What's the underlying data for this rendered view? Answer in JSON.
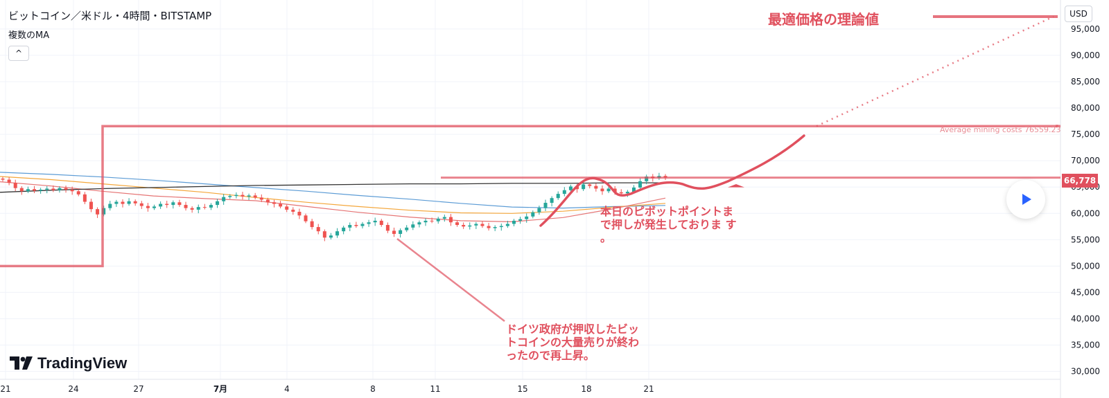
{
  "header": {
    "symbol_line": "ビットコイン／米ドル・4時間・BITSTAMP",
    "indicator": "複数のMA",
    "collapse_glyph": "^",
    "currency": "USD"
  },
  "branding": {
    "logo_text": "TradingView"
  },
  "annotations": {
    "title": "最適価格の理論値",
    "pivot_note": [
      "本日のピボットポイントま",
      "で押しが発生しておりま す",
      "。"
    ],
    "germany_note": [
      "ドイツ政府が押収したビッ",
      "トコインの大量売りが終わ",
      "ったので再上昇。"
    ],
    "mining_label": "Average mining costs 76559.23"
  },
  "colors": {
    "annotation": "#e0505e",
    "up_candle": "#26a69a",
    "down_candle": "#ef5350",
    "ma_blue": "#5b9bd5",
    "ma_orange": "#f4a63a",
    "ma_red": "#e57373",
    "ma_black": "#333333",
    "grid": "#f0f3fa"
  },
  "chart_data": {
    "type": "candlestick",
    "x_ticks": [
      "21",
      "24",
      "27",
      "7月",
      "4",
      "8",
      "11",
      "15",
      "18",
      "21"
    ],
    "y_ticks": [
      30000,
      35000,
      40000,
      45000,
      50000,
      55000,
      60000,
      65000,
      70000,
      75000,
      80000,
      85000,
      90000,
      95000
    ],
    "ylim": [
      28500,
      100500
    ],
    "current_price": "66,778",
    "mining_cost_level": 76559.23,
    "candle_closes": [
      66400,
      65800,
      64800,
      64200,
      64600,
      64300,
      64500,
      64700,
      64400,
      64800,
      64500,
      64200,
      63600,
      62200,
      60800,
      59800,
      61000,
      61800,
      62200,
      61800,
      62300,
      61900,
      61400,
      61000,
      61300,
      61800,
      61600,
      62100,
      61600,
      61000,
      60700,
      61200,
      61100,
      61600,
      62300,
      63100,
      63300,
      63500,
      63200,
      63400,
      63000,
      62600,
      62100,
      61800,
      61300,
      60700,
      60300,
      59600,
      58500,
      57400,
      56600,
      55400,
      55800,
      56600,
      57300,
      57800,
      57600,
      58000,
      58300,
      58600,
      57800,
      56700,
      56100,
      56800,
      57300,
      57900,
      58300,
      58600,
      58500,
      59000,
      59300,
      58300,
      57800,
      57500,
      57700,
      58000,
      57600,
      57200,
      57400,
      57600,
      58000,
      58600,
      58900,
      59400,
      60200,
      61000,
      62000,
      62900,
      63700,
      64400,
      65100,
      64600,
      65500,
      65200,
      64700,
      64200,
      64700,
      64000,
      63800,
      64100,
      64900,
      66100,
      67000,
      66700,
      67100,
      66778
    ],
    "series": [
      {
        "name": "",
        "values": [
          67800,
          67400,
          66900,
          66300,
          65600,
          64900,
          64200,
          63400,
          62700,
          61900,
          61200,
          61000,
          61300,
          61500
        ]
      },
      {
        "name": "",
        "values": [
          67000,
          66400,
          65600,
          64800,
          64000,
          63000,
          62100,
          61300,
          60600,
          60100,
          60000,
          60400,
          61200,
          61900
        ]
      },
      {
        "name": "",
        "values": [
          66000,
          65200,
          64200,
          63300,
          62800,
          62400,
          61300,
          60200,
          59300,
          58600,
          58400,
          59200,
          60900,
          62900
        ]
      },
      {
        "name": "",
        "values": [
          64000,
          64400,
          64700,
          64900,
          65100,
          65300,
          65400,
          65500,
          65600,
          65600,
          65700,
          65700,
          65800,
          65800
        ]
      }
    ]
  }
}
